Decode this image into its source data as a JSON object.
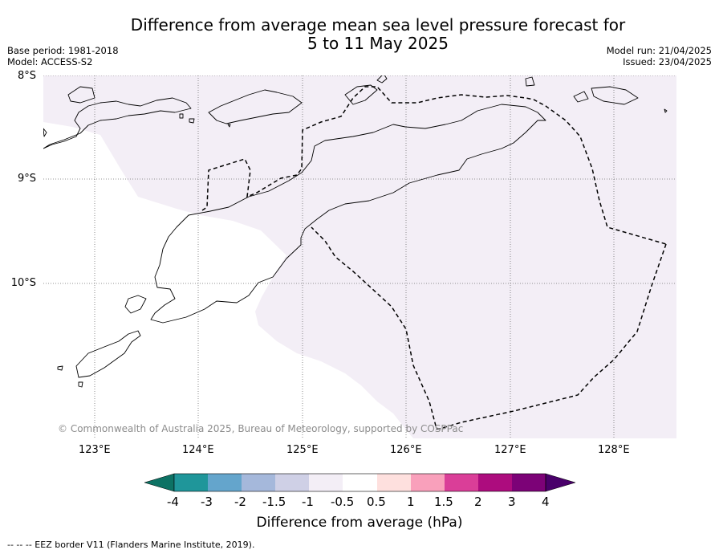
{
  "title": "Difference from average mean sea level pressure forecast for\n5 to 11 May 2025",
  "meta_left": [
    "Base period: 1981-2018",
    "Model: ACCESS-S2"
  ],
  "meta_right": [
    "Model run: 21/04/2025",
    "Issued: 23/04/2025"
  ],
  "copyright": "© Commonwealth of Australia 2025, Bureau of Meteorology, supported by COSPPac",
  "footnote": "--  --  -- EEZ border V11 (Flanders Marine Institute, 2019).",
  "map": {
    "lon_range": [
      122.5,
      128.6
    ],
    "lat_range": [
      -11.5,
      -8.0
    ],
    "lon_ticks": [
      {
        "value": 123,
        "label": "123°E"
      },
      {
        "value": 124,
        "label": "124°E"
      },
      {
        "value": 125,
        "label": "125°E"
      },
      {
        "value": 126,
        "label": "126°E"
      },
      {
        "value": 127,
        "label": "127°E"
      },
      {
        "value": 128,
        "label": "128°E"
      }
    ],
    "lat_ticks": [
      {
        "value": -8,
        "label": "8°S"
      },
      {
        "value": -9,
        "label": "9°S"
      },
      {
        "value": -10,
        "label": "10°S"
      }
    ],
    "gridlines": true,
    "shading_category": "-1 to -0.5",
    "shading_color": "#f3eef6",
    "land_fill": "none",
    "eez_line_style": "dashed"
  },
  "colorbar": {
    "title": "Difference from average (hPa)",
    "labels": [
      "-4",
      "-3",
      "-2",
      "-1.5",
      "-1",
      "-0.5",
      "0.5",
      "1",
      "1.5",
      "2",
      "3",
      "4"
    ],
    "colors": [
      "#0d7264",
      "#1f969a",
      "#64a5cc",
      "#a5b8db",
      "#cfd0e6",
      "#f3eef6",
      "#ffffff",
      "#fee0de",
      "#f9a0bb",
      "#da3e98",
      "#ad0c7e",
      "#7c0277",
      "#49006a"
    ]
  }
}
